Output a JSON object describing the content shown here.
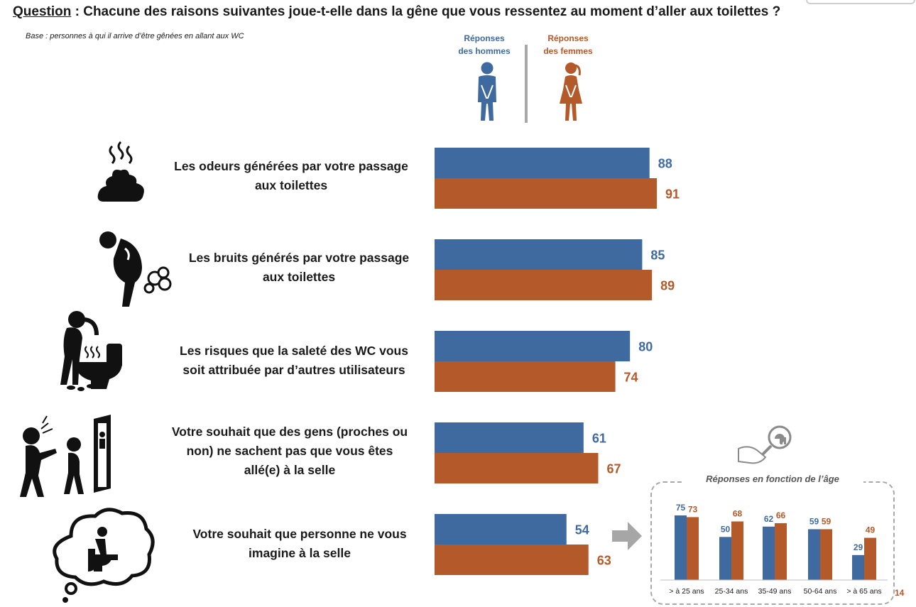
{
  "question": {
    "label": "Question",
    "text": " : Chacune des raisons suivantes joue-t-elle dans la gêne que vous ressentez au moment d’aller aux toilettes ?"
  },
  "base_note": "Base : personnes à qui il arrive d’être gênées en allant aux WC",
  "legend": {
    "men_line1": "Réponses",
    "men_line2": "des hommes",
    "women_line1": "Réponses",
    "women_line2": "des femmes"
  },
  "colors": {
    "men": "#3f6aa0",
    "women": "#b4592a"
  },
  "chart_data": [
    {
      "type": "bar",
      "orientation": "horizontal",
      "categories": [
        [
          "Les odeurs générées par votre passage",
          "aux toilettes"
        ],
        [
          "Les bruits générés par votre passage",
          "aux toilettes"
        ],
        [
          "Les risques que la saleté des WC vous",
          "soit attribuée par d’autres utilisateurs"
        ],
        [
          "Votre souhait que des gens (proches ou",
          "non) ne sachent pas que vous êtes",
          "allé(e) à la selle"
        ],
        [
          "Votre souhait que personne ne vous",
          "imagine à la selle"
        ]
      ],
      "series": [
        {
          "name": "Réponses des hommes",
          "values": [
            88,
            85,
            80,
            61,
            54
          ]
        },
        {
          "name": "Réponses des femmes",
          "values": [
            91,
            89,
            74,
            67,
            63
          ]
        }
      ],
      "xlim": [
        0,
        100
      ],
      "icons": [
        "stinky-poop-icon",
        "flatulence-person-icon",
        "dirty-toilet-icon",
        "pointing-person-door-icon",
        "thought-bubble-toilet-icon"
      ]
    },
    {
      "type": "bar",
      "title": "Réponses en fonction de l’âge",
      "categories": [
        "> à 25 ans",
        "25-34 ans",
        "35-49 ans",
        "50-64 ans",
        "> à 65 ans"
      ],
      "series": [
        {
          "name": "Réponses des hommes",
          "values": [
            75,
            50,
            62,
            59,
            29
          ]
        },
        {
          "name": "Réponses des femmes",
          "values": [
            73,
            68,
            66,
            59,
            49
          ]
        }
      ],
      "ylim": [
        0,
        80
      ]
    }
  ],
  "page_number": "14"
}
